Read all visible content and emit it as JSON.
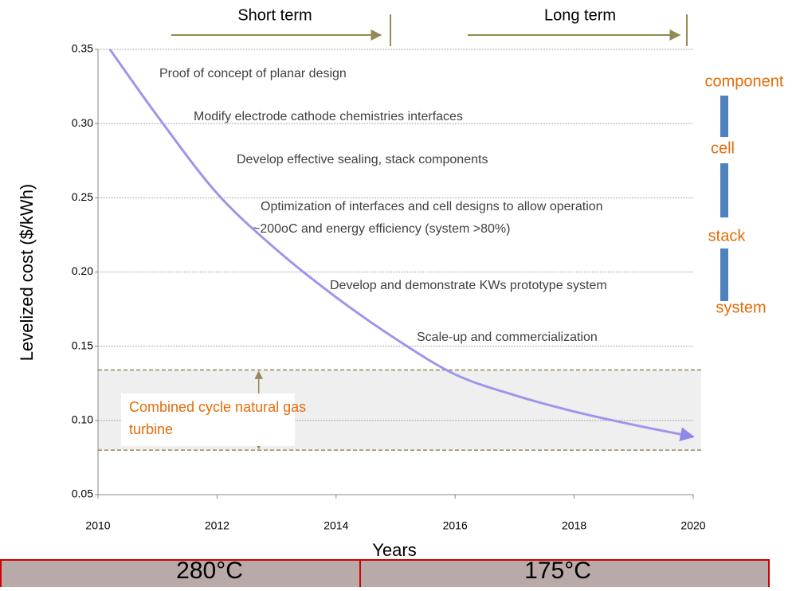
{
  "chart_data": {
    "type": "line",
    "x_label": "Years",
    "y_label": "Levelized cost ($/kWh)",
    "x": [
      2010.2,
      2011,
      2012,
      2013,
      2014,
      2015,
      2016,
      2017,
      2018,
      2019,
      2020
    ],
    "series": [
      {
        "color": "#9d96ec",
        "values": [
          0.35,
          0.305,
          0.253,
          0.215,
          0.183,
          0.155,
          0.131,
          0.117,
          0.106,
          0.097,
          0.089
        ]
      }
    ],
    "xlim": [
      2010,
      2020
    ],
    "ylim": [
      0.05,
      0.35
    ],
    "xticks": [
      2010,
      2012,
      2014,
      2016,
      2018,
      2020
    ],
    "yticks": [
      0.05,
      {
        "value": 0.1,
        "label": "0.10"
      },
      0.15,
      {
        "value": 0.2,
        "label": "0.20"
      },
      0.25,
      {
        "value": 0.3,
        "label": "0.30"
      },
      0.35
    ],
    "grid": true,
    "band": {
      "low": 0.08,
      "high": 0.134,
      "label_lines": [
        "Combined cycle natural gas",
        "turbine"
      ]
    },
    "annotations": [
      "Proof of concept of planar design",
      "Modify electrode cathode chemistries interfaces",
      "Develop effective sealing, stack components",
      "Optimization of interfaces and cell designs to allow operation",
      "~200oC and energy efficiency (system >80%)",
      "Develop and demonstrate KWs prototype system",
      "Scale-up and commercialization"
    ],
    "terms": [
      "Short term",
      "Long term"
    ],
    "levels": [
      "component",
      "cell",
      "stack",
      "system"
    ],
    "temperatures": [
      "280°C",
      "175°C"
    ]
  }
}
